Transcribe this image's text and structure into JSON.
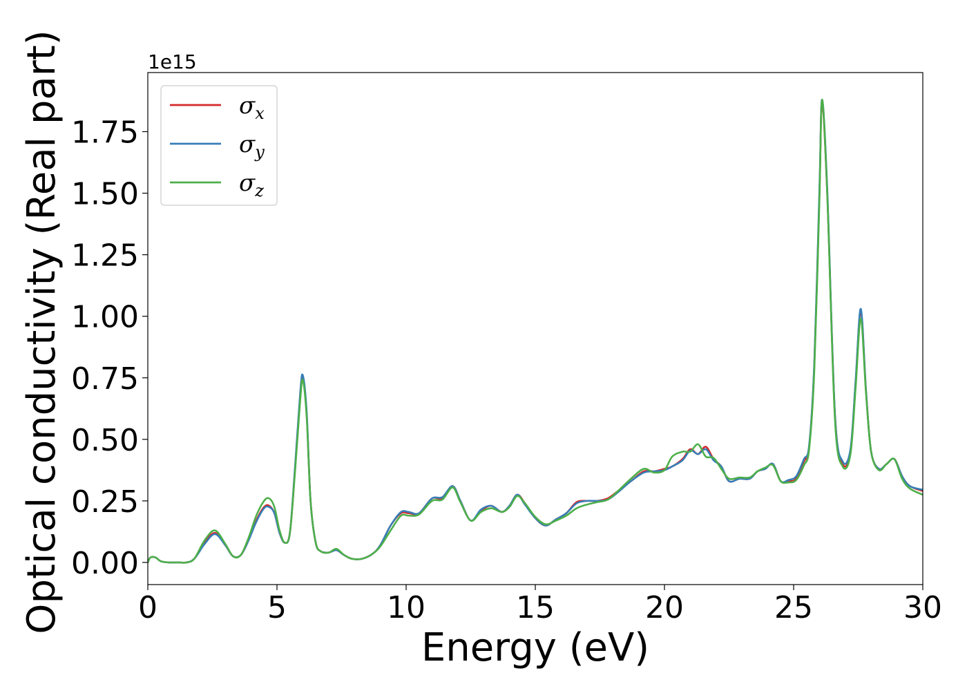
{
  "chart_data": {
    "type": "line",
    "xlabel": "Energy (eV)",
    "ylabel": "Optical conductivity (Real part)",
    "y_offset_label": "1e15",
    "xlim": [
      0,
      30
    ],
    "ylim": [
      -0.09,
      1.99
    ],
    "x_ticks": [
      0,
      5,
      10,
      15,
      20,
      25,
      30
    ],
    "x_tick_labels": [
      "0",
      "5",
      "10",
      "15",
      "20",
      "25",
      "30"
    ],
    "y_ticks": [
      0,
      0.25,
      0.5,
      0.75,
      1.0,
      1.25,
      1.5,
      1.75
    ],
    "y_tick_labels": [
      "0.00",
      "0.25",
      "0.50",
      "0.75",
      "1.00",
      "1.25",
      "1.50",
      "1.75"
    ],
    "grid": false,
    "legend_position": "top-left",
    "series": [
      {
        "name": "σx",
        "symbol": "σ",
        "subscript": "x",
        "color": "#d62728",
        "x": [
          0,
          0.1,
          0.3,
          0.5,
          0.8,
          1.2,
          1.5,
          1.8,
          2.2,
          2.6,
          3.0,
          3.3,
          3.6,
          3.9,
          4.2,
          4.5,
          4.7,
          4.9,
          5.1,
          5.3,
          5.5,
          5.7,
          5.9,
          6.0,
          6.15,
          6.3,
          6.5,
          6.7,
          7.0,
          7.3,
          7.6,
          7.9,
          8.3,
          8.7,
          9.0,
          9.4,
          9.8,
          10.1,
          10.5,
          11.0,
          11.4,
          11.8,
          12.1,
          12.5,
          12.9,
          13.3,
          13.7,
          14.0,
          14.3,
          14.6,
          15.0,
          15.4,
          15.8,
          16.2,
          16.6,
          17.0,
          17.4,
          17.8,
          18.2,
          18.7,
          19.2,
          19.6,
          20.0,
          20.3,
          20.7,
          21.0,
          21.3,
          21.6,
          21.9,
          22.2,
          22.5,
          22.9,
          23.3,
          23.6,
          23.9,
          24.2,
          24.5,
          24.8,
          25.1,
          25.4,
          25.6,
          25.8,
          26.0,
          26.1,
          26.3,
          26.6,
          26.9,
          27.2,
          27.4,
          27.6,
          27.8,
          28.0,
          28.3,
          28.6,
          28.9,
          29.2,
          29.5,
          30.0
        ],
        "values": [
          0.0,
          0.02,
          0.02,
          0.005,
          0.0,
          0.0,
          0.0,
          0.015,
          0.08,
          0.12,
          0.07,
          0.025,
          0.03,
          0.09,
          0.17,
          0.225,
          0.23,
          0.2,
          0.12,
          0.08,
          0.12,
          0.38,
          0.68,
          0.75,
          0.6,
          0.25,
          0.08,
          0.045,
          0.04,
          0.05,
          0.03,
          0.015,
          0.015,
          0.035,
          0.07,
          0.15,
          0.2,
          0.2,
          0.2,
          0.26,
          0.26,
          0.31,
          0.25,
          0.17,
          0.21,
          0.23,
          0.205,
          0.23,
          0.275,
          0.24,
          0.18,
          0.15,
          0.175,
          0.2,
          0.245,
          0.25,
          0.25,
          0.26,
          0.29,
          0.33,
          0.37,
          0.37,
          0.38,
          0.39,
          0.42,
          0.46,
          0.44,
          0.47,
          0.42,
          0.39,
          0.33,
          0.34,
          0.34,
          0.37,
          0.38,
          0.4,
          0.33,
          0.33,
          0.34,
          0.41,
          0.47,
          0.8,
          1.5,
          1.87,
          1.5,
          0.6,
          0.4,
          0.45,
          0.73,
          1.02,
          0.7,
          0.45,
          0.38,
          0.4,
          0.42,
          0.35,
          0.31,
          0.29
        ]
      },
      {
        "name": "σy",
        "symbol": "σ",
        "subscript": "y",
        "color": "#377eb8",
        "x": [
          0,
          0.1,
          0.3,
          0.5,
          0.8,
          1.2,
          1.5,
          1.8,
          2.2,
          2.6,
          3.0,
          3.3,
          3.6,
          3.9,
          4.2,
          4.5,
          4.7,
          4.9,
          5.1,
          5.3,
          5.5,
          5.7,
          5.9,
          6.0,
          6.15,
          6.3,
          6.5,
          6.7,
          7.0,
          7.3,
          7.6,
          7.9,
          8.3,
          8.7,
          9.0,
          9.4,
          9.8,
          10.1,
          10.5,
          11.0,
          11.4,
          11.8,
          12.1,
          12.5,
          12.9,
          13.3,
          13.7,
          14.0,
          14.3,
          14.6,
          15.0,
          15.4,
          15.8,
          16.2,
          16.6,
          17.0,
          17.4,
          17.8,
          18.2,
          18.7,
          19.2,
          19.6,
          20.0,
          20.3,
          20.7,
          21.0,
          21.3,
          21.6,
          21.9,
          22.2,
          22.5,
          22.9,
          23.3,
          23.6,
          23.9,
          24.2,
          24.5,
          24.8,
          25.1,
          25.4,
          25.6,
          25.8,
          26.0,
          26.1,
          26.3,
          26.6,
          26.9,
          27.2,
          27.4,
          27.6,
          27.8,
          28.0,
          28.3,
          28.6,
          28.9,
          29.2,
          29.5,
          30.0
        ],
        "values": [
          0.0,
          0.02,
          0.02,
          0.005,
          0.0,
          0.0,
          0.0,
          0.015,
          0.075,
          0.115,
          0.07,
          0.025,
          0.03,
          0.09,
          0.165,
          0.22,
          0.225,
          0.2,
          0.12,
          0.08,
          0.12,
          0.39,
          0.69,
          0.76,
          0.61,
          0.25,
          0.08,
          0.045,
          0.04,
          0.05,
          0.03,
          0.015,
          0.015,
          0.035,
          0.07,
          0.15,
          0.205,
          0.205,
          0.2,
          0.26,
          0.265,
          0.31,
          0.25,
          0.17,
          0.215,
          0.23,
          0.205,
          0.23,
          0.275,
          0.235,
          0.18,
          0.15,
          0.175,
          0.2,
          0.24,
          0.25,
          0.25,
          0.255,
          0.285,
          0.33,
          0.365,
          0.37,
          0.375,
          0.39,
          0.415,
          0.455,
          0.44,
          0.46,
          0.415,
          0.39,
          0.33,
          0.34,
          0.34,
          0.37,
          0.38,
          0.4,
          0.33,
          0.335,
          0.35,
          0.42,
          0.475,
          0.81,
          1.52,
          1.88,
          1.52,
          0.6,
          0.41,
          0.46,
          0.74,
          1.03,
          0.7,
          0.45,
          0.38,
          0.4,
          0.42,
          0.35,
          0.31,
          0.295
        ]
      },
      {
        "name": "σz",
        "symbol": "σ",
        "subscript": "z",
        "color": "#4daf4a",
        "x": [
          0,
          0.1,
          0.3,
          0.5,
          0.8,
          1.2,
          1.5,
          1.8,
          2.2,
          2.6,
          3.0,
          3.3,
          3.6,
          3.9,
          4.2,
          4.5,
          4.7,
          4.9,
          5.1,
          5.3,
          5.5,
          5.7,
          5.9,
          6.0,
          6.15,
          6.3,
          6.5,
          6.7,
          7.0,
          7.3,
          7.6,
          7.9,
          8.3,
          8.7,
          9.0,
          9.4,
          9.8,
          10.1,
          10.5,
          11.0,
          11.4,
          11.8,
          12.1,
          12.5,
          12.9,
          13.3,
          13.7,
          14.0,
          14.3,
          14.6,
          15.0,
          15.4,
          15.8,
          16.2,
          16.6,
          17.0,
          17.4,
          17.8,
          18.2,
          18.7,
          19.2,
          19.6,
          20.0,
          20.3,
          20.7,
          21.0,
          21.3,
          21.6,
          21.9,
          22.2,
          22.5,
          22.9,
          23.3,
          23.6,
          23.9,
          24.2,
          24.5,
          24.8,
          25.1,
          25.4,
          25.6,
          25.8,
          26.0,
          26.1,
          26.3,
          26.6,
          26.9,
          27.2,
          27.4,
          27.6,
          27.8,
          28.0,
          28.3,
          28.6,
          28.9,
          29.2,
          29.5,
          30.0
        ],
        "values": [
          0.0,
          0.02,
          0.02,
          0.005,
          0.0,
          0.0,
          0.0,
          0.015,
          0.09,
          0.13,
          0.075,
          0.025,
          0.03,
          0.1,
          0.19,
          0.25,
          0.26,
          0.225,
          0.13,
          0.08,
          0.12,
          0.37,
          0.66,
          0.74,
          0.59,
          0.25,
          0.08,
          0.045,
          0.04,
          0.055,
          0.03,
          0.015,
          0.015,
          0.035,
          0.065,
          0.13,
          0.19,
          0.19,
          0.195,
          0.25,
          0.255,
          0.305,
          0.245,
          0.17,
          0.205,
          0.22,
          0.205,
          0.225,
          0.27,
          0.24,
          0.185,
          0.155,
          0.17,
          0.19,
          0.22,
          0.235,
          0.245,
          0.255,
          0.29,
          0.34,
          0.38,
          0.365,
          0.375,
          0.43,
          0.45,
          0.45,
          0.48,
          0.43,
          0.425,
          0.38,
          0.34,
          0.345,
          0.345,
          0.37,
          0.385,
          0.395,
          0.33,
          0.325,
          0.335,
          0.395,
          0.46,
          0.78,
          1.48,
          1.88,
          1.5,
          0.58,
          0.39,
          0.44,
          0.71,
          0.99,
          0.69,
          0.45,
          0.375,
          0.4,
          0.42,
          0.34,
          0.3,
          0.275
        ]
      }
    ]
  }
}
